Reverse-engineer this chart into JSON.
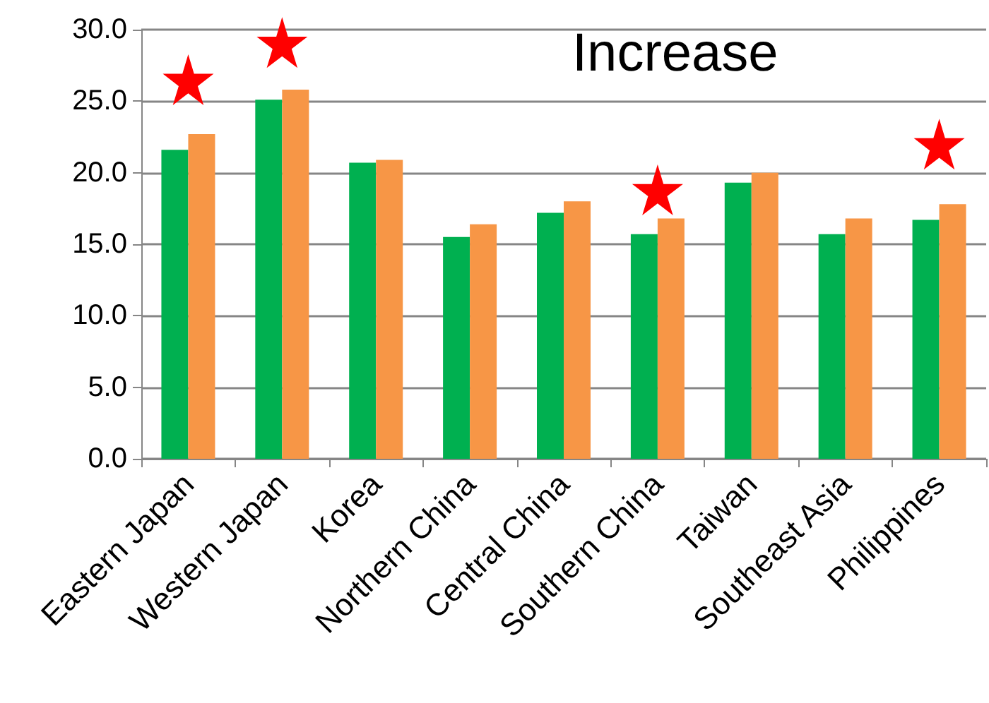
{
  "chart_data": {
    "type": "bar",
    "title": "Increase",
    "categories": [
      "Eastern Japan",
      "Western Japan",
      "Korea",
      "Northern China",
      "Central China",
      "Southern China",
      "Taiwan",
      "Southeast Asia",
      "Philippines"
    ],
    "series": [
      {
        "color": "#00b050",
        "values": [
          21.6,
          25.1,
          20.7,
          15.5,
          17.2,
          15.7,
          19.3,
          15.7,
          16.7
        ]
      },
      {
        "color": "#f79646",
        "values": [
          22.7,
          25.8,
          20.9,
          16.4,
          18.0,
          16.8,
          20.0,
          16.8,
          17.8
        ]
      },
      {
        "type": "scatter",
        "color": "#ff0000",
        "x": [
          "Eastern Japan",
          "Western Japan",
          "Southern China",
          "Philippines"
        ],
        "values": [
          26.5,
          29.1,
          18.8,
          22.0
        ]
      }
    ],
    "marker": "star",
    "ylim": [
      0,
      30
    ],
    "yticks": [
      {
        "value": 0,
        "label": "0.0"
      },
      {
        "value": 5,
        "label": "5.0"
      },
      {
        "value": 10,
        "label": "10.0"
      },
      {
        "value": 15,
        "label": "15.0"
      },
      {
        "value": 20,
        "label": "20.0"
      },
      {
        "value": 25,
        "label": "25.0"
      },
      {
        "value": 30,
        "label": "30.0"
      }
    ],
    "grid": "y"
  }
}
